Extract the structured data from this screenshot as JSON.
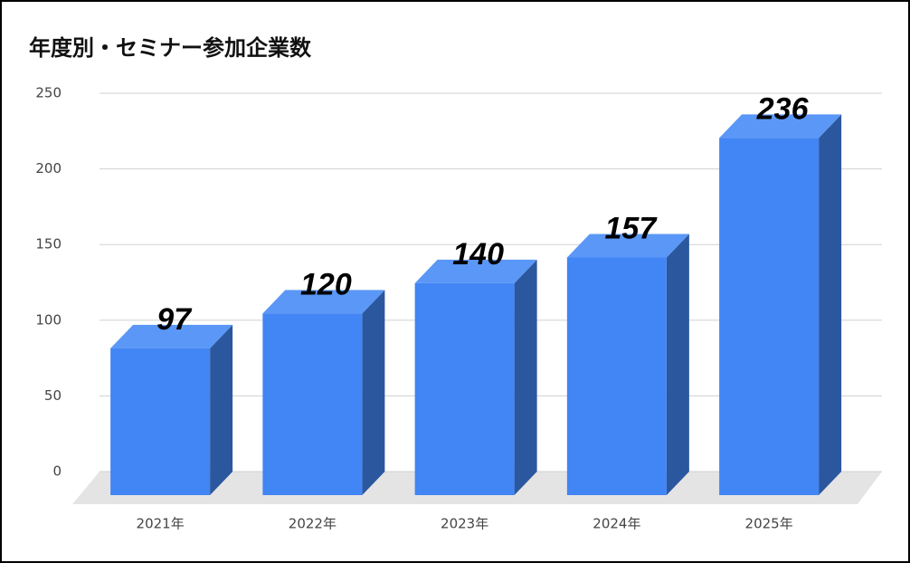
{
  "chart_data": {
    "type": "bar3d",
    "title": "年度別・セミナー参加企業数",
    "categories": [
      "2021年",
      "2022年",
      "2023年",
      "2024年",
      "2025年"
    ],
    "values": [
      97,
      120,
      140,
      157,
      236
    ],
    "color": "#4285f4",
    "ylim": [
      0,
      250
    ],
    "yticks": [
      0,
      50,
      100,
      150,
      200,
      250
    ],
    "grid": true
  }
}
